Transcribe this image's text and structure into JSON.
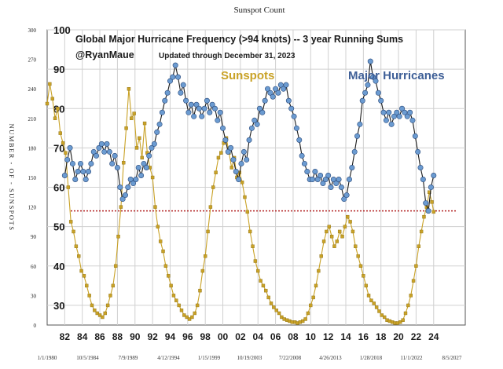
{
  "chart_data": {
    "type": "line",
    "title": "Sunspot Count",
    "inner_title": "Global Major Hurricane Frequency (>94 knots)  -- 3 year Running Sums",
    "author": "@RyanMaue",
    "update_note": "Updated through December 31, 2023",
    "left_axis_label": "NUMBER - OF - SUNSPOTS",
    "left_ticks": [
      "0",
      "30",
      "60",
      "90",
      "120",
      "150",
      "180",
      "210",
      "240",
      "270",
      "300"
    ],
    "left_range": [
      0,
      300
    ],
    "right_ticks": [
      "30",
      "40",
      "50",
      "60",
      "70",
      "80",
      "90",
      "100"
    ],
    "right_range": [
      25,
      100
    ],
    "bottom_date_ticks": [
      "1/1/1980",
      "10/5/1984",
      "7/9/1989",
      "4/12/1994",
      "1/15/1999",
      "10/19/2003",
      "7/22/2008",
      "4/26/2013",
      "1/28/2018",
      "11/1/2022",
      "8/5/2027"
    ],
    "year_ticks": [
      "82",
      "84",
      "86",
      "88",
      "90",
      "92",
      "94",
      "96",
      "98",
      "00",
      "02",
      "04",
      "06",
      "08",
      "10",
      "12",
      "14",
      "16",
      "18",
      "20",
      "22",
      "24"
    ],
    "x_range_years": [
      1980,
      2027.6
    ],
    "reference_line": 54,
    "grid": true,
    "series": [
      {
        "name": "Sunspots",
        "axis": "left",
        "color": "#C9A227",
        "points": [
          [
            1980.0,
            225
          ],
          [
            1980.3,
            245
          ],
          [
            1980.6,
            230
          ],
          [
            1980.9,
            210
          ],
          [
            1981.2,
            220
          ],
          [
            1981.5,
            195
          ],
          [
            1981.8,
            185
          ],
          [
            1982.1,
            175
          ],
          [
            1982.4,
            140
          ],
          [
            1982.7,
            105
          ],
          [
            1983.0,
            95
          ],
          [
            1983.3,
            80
          ],
          [
            1983.6,
            70
          ],
          [
            1983.9,
            55
          ],
          [
            1984.2,
            50
          ],
          [
            1984.5,
            40
          ],
          [
            1984.8,
            30
          ],
          [
            1985.1,
            20
          ],
          [
            1985.4,
            15
          ],
          [
            1985.7,
            12
          ],
          [
            1986.0,
            10
          ],
          [
            1986.3,
            8
          ],
          [
            1986.6,
            12
          ],
          [
            1986.9,
            20
          ],
          [
            1987.2,
            30
          ],
          [
            1987.5,
            40
          ],
          [
            1987.8,
            60
          ],
          [
            1988.1,
            90
          ],
          [
            1988.4,
            120
          ],
          [
            1988.7,
            165
          ],
          [
            1989.0,
            200
          ],
          [
            1989.3,
            240
          ],
          [
            1989.6,
            210
          ],
          [
            1989.9,
            215
          ],
          [
            1990.2,
            180
          ],
          [
            1990.5,
            190
          ],
          [
            1990.8,
            170
          ],
          [
            1991.1,
            205
          ],
          [
            1991.4,
            175
          ],
          [
            1991.7,
            160
          ],
          [
            1992.0,
            150
          ],
          [
            1992.3,
            120
          ],
          [
            1992.6,
            100
          ],
          [
            1992.9,
            85
          ],
          [
            1993.2,
            75
          ],
          [
            1993.5,
            60
          ],
          [
            1993.8,
            50
          ],
          [
            1994.1,
            40
          ],
          [
            1994.4,
            30
          ],
          [
            1994.7,
            25
          ],
          [
            1995.0,
            20
          ],
          [
            1995.3,
            15
          ],
          [
            1995.6,
            10
          ],
          [
            1995.9,
            8
          ],
          [
            1996.2,
            6
          ],
          [
            1996.5,
            8
          ],
          [
            1996.8,
            12
          ],
          [
            1997.1,
            20
          ],
          [
            1997.4,
            35
          ],
          [
            1997.7,
            55
          ],
          [
            1998.0,
            70
          ],
          [
            1998.3,
            95
          ],
          [
            1998.6,
            120
          ],
          [
            1998.9,
            140
          ],
          [
            1999.2,
            155
          ],
          [
            1999.5,
            170
          ],
          [
            1999.8,
            175
          ],
          [
            2000.1,
            185
          ],
          [
            2000.4,
            190
          ],
          [
            2000.7,
            175
          ],
          [
            2001.0,
            160
          ],
          [
            2001.3,
            170
          ],
          [
            2001.6,
            150
          ],
          [
            2001.9,
            155
          ],
          [
            2002.2,
            145
          ],
          [
            2002.5,
            130
          ],
          [
            2002.8,
            115
          ],
          [
            2003.1,
            95
          ],
          [
            2003.4,
            80
          ],
          [
            2003.7,
            65
          ],
          [
            2004.0,
            55
          ],
          [
            2004.3,
            45
          ],
          [
            2004.6,
            40
          ],
          [
            2004.9,
            35
          ],
          [
            2005.2,
            28
          ],
          [
            2005.5,
            22
          ],
          [
            2005.8,
            18
          ],
          [
            2006.1,
            15
          ],
          [
            2006.4,
            12
          ],
          [
            2006.7,
            8
          ],
          [
            2007.0,
            6
          ],
          [
            2007.3,
            5
          ],
          [
            2007.6,
            4
          ],
          [
            2007.9,
            3
          ],
          [
            2008.2,
            3
          ],
          [
            2008.5,
            2
          ],
          [
            2008.8,
            3
          ],
          [
            2009.1,
            4
          ],
          [
            2009.4,
            6
          ],
          [
            2009.7,
            12
          ],
          [
            2010.0,
            20
          ],
          [
            2010.3,
            28
          ],
          [
            2010.6,
            40
          ],
          [
            2010.9,
            55
          ],
          [
            2011.2,
            70
          ],
          [
            2011.5,
            85
          ],
          [
            2011.8,
            95
          ],
          [
            2012.1,
            100
          ],
          [
            2012.4,
            90
          ],
          [
            2012.7,
            80
          ],
          [
            2013.0,
            85
          ],
          [
            2013.3,
            95
          ],
          [
            2013.6,
            90
          ],
          [
            2013.9,
            100
          ],
          [
            2014.2,
            110
          ],
          [
            2014.5,
            105
          ],
          [
            2014.8,
            95
          ],
          [
            2015.1,
            80
          ],
          [
            2015.4,
            70
          ],
          [
            2015.7,
            60
          ],
          [
            2016.0,
            50
          ],
          [
            2016.3,
            40
          ],
          [
            2016.6,
            30
          ],
          [
            2016.9,
            25
          ],
          [
            2017.2,
            22
          ],
          [
            2017.5,
            18
          ],
          [
            2017.8,
            14
          ],
          [
            2018.1,
            10
          ],
          [
            2018.4,
            8
          ],
          [
            2018.7,
            5
          ],
          [
            2019.0,
            4
          ],
          [
            2019.3,
            3
          ],
          [
            2019.6,
            2
          ],
          [
            2019.9,
            2
          ],
          [
            2020.2,
            3
          ],
          [
            2020.5,
            5
          ],
          [
            2020.8,
            12
          ],
          [
            2021.1,
            20
          ],
          [
            2021.4,
            30
          ],
          [
            2021.7,
            45
          ],
          [
            2022.0,
            60
          ],
          [
            2022.3,
            80
          ],
          [
            2022.6,
            95
          ],
          [
            2022.9,
            110
          ],
          [
            2023.2,
            120
          ],
          [
            2023.5,
            135
          ],
          [
            2023.8,
            125
          ],
          [
            2024.0,
            115
          ]
        ]
      },
      {
        "name": "Major Hurricanes",
        "axis": "right",
        "color": "#6B9BD1",
        "points": [
          [
            1982.0,
            63
          ],
          [
            1982.3,
            67
          ],
          [
            1982.6,
            70
          ],
          [
            1982.9,
            66
          ],
          [
            1983.2,
            62
          ],
          [
            1983.5,
            64
          ],
          [
            1983.8,
            66
          ],
          [
            1984.1,
            64
          ],
          [
            1984.4,
            62
          ],
          [
            1984.7,
            64
          ],
          [
            1985.0,
            66
          ],
          [
            1985.3,
            69
          ],
          [
            1985.6,
            68
          ],
          [
            1985.9,
            70
          ],
          [
            1986.2,
            71
          ],
          [
            1986.5,
            69
          ],
          [
            1986.8,
            71
          ],
          [
            1987.1,
            69
          ],
          [
            1987.4,
            66
          ],
          [
            1987.7,
            68
          ],
          [
            1988.0,
            65
          ],
          [
            1988.3,
            60
          ],
          [
            1988.6,
            57
          ],
          [
            1988.9,
            58
          ],
          [
            1989.2,
            60
          ],
          [
            1989.5,
            62
          ],
          [
            1989.8,
            61
          ],
          [
            1990.1,
            62
          ],
          [
            1990.4,
            65
          ],
          [
            1990.7,
            63
          ],
          [
            1991.0,
            66
          ],
          [
            1991.3,
            65
          ],
          [
            1991.6,
            68
          ],
          [
            1991.9,
            70
          ],
          [
            1992.2,
            71
          ],
          [
            1992.5,
            74
          ],
          [
            1992.8,
            76
          ],
          [
            1993.1,
            79
          ],
          [
            1993.4,
            82
          ],
          [
            1993.7,
            84
          ],
          [
            1994.0,
            87
          ],
          [
            1994.3,
            88
          ],
          [
            1994.6,
            91
          ],
          [
            1994.9,
            88
          ],
          [
            1995.2,
            84
          ],
          [
            1995.5,
            86
          ],
          [
            1995.8,
            82
          ],
          [
            1996.1,
            79
          ],
          [
            1996.4,
            81
          ],
          [
            1996.7,
            78
          ],
          [
            1997.0,
            81
          ],
          [
            1997.3,
            80
          ],
          [
            1997.6,
            78
          ],
          [
            1997.9,
            80
          ],
          [
            1998.2,
            82
          ],
          [
            1998.5,
            79
          ],
          [
            1998.8,
            81
          ],
          [
            1999.1,
            80
          ],
          [
            1999.4,
            77
          ],
          [
            1999.7,
            79
          ],
          [
            2000.0,
            75
          ],
          [
            2000.3,
            72
          ],
          [
            2000.6,
            69
          ],
          [
            2000.9,
            70
          ],
          [
            2001.2,
            67
          ],
          [
            2001.5,
            64
          ],
          [
            2001.8,
            62
          ],
          [
            2002.1,
            66
          ],
          [
            2002.4,
            69
          ],
          [
            2002.7,
            67
          ],
          [
            2003.0,
            72
          ],
          [
            2003.3,
            75
          ],
          [
            2003.6,
            77
          ],
          [
            2003.9,
            76
          ],
          [
            2004.2,
            80
          ],
          [
            2004.5,
            79
          ],
          [
            2004.8,
            82
          ],
          [
            2005.1,
            85
          ],
          [
            2005.4,
            84
          ],
          [
            2005.7,
            83
          ],
          [
            2006.0,
            85
          ],
          [
            2006.3,
            84
          ],
          [
            2006.6,
            86
          ],
          [
            2006.9,
            85
          ],
          [
            2007.2,
            86
          ],
          [
            2007.5,
            82
          ],
          [
            2007.8,
            80
          ],
          [
            2008.1,
            78
          ],
          [
            2008.4,
            75
          ],
          [
            2008.7,
            72
          ],
          [
            2009.0,
            68
          ],
          [
            2009.3,
            66
          ],
          [
            2009.6,
            64
          ],
          [
            2009.9,
            62
          ],
          [
            2010.2,
            62
          ],
          [
            2010.5,
            64
          ],
          [
            2010.8,
            62
          ],
          [
            2011.1,
            63
          ],
          [
            2011.4,
            61
          ],
          [
            2011.7,
            62
          ],
          [
            2012.0,
            63
          ],
          [
            2012.3,
            60
          ],
          [
            2012.6,
            62
          ],
          [
            2012.9,
            61
          ],
          [
            2013.2,
            62
          ],
          [
            2013.5,
            60
          ],
          [
            2013.8,
            57
          ],
          [
            2014.1,
            58
          ],
          [
            2014.4,
            62
          ],
          [
            2014.7,
            65
          ],
          [
            2015.0,
            69
          ],
          [
            2015.3,
            73
          ],
          [
            2015.6,
            76
          ],
          [
            2015.9,
            82
          ],
          [
            2016.2,
            84
          ],
          [
            2016.5,
            86
          ],
          [
            2016.8,
            92
          ],
          [
            2017.1,
            88
          ],
          [
            2017.4,
            87
          ],
          [
            2017.7,
            84
          ],
          [
            2018.0,
            82
          ],
          [
            2018.3,
            79
          ],
          [
            2018.6,
            77
          ],
          [
            2018.9,
            79
          ],
          [
            2019.2,
            76
          ],
          [
            2019.5,
            78
          ],
          [
            2019.8,
            79
          ],
          [
            2020.1,
            78
          ],
          [
            2020.4,
            80
          ],
          [
            2020.7,
            79
          ],
          [
            2021.0,
            78
          ],
          [
            2021.3,
            79
          ],
          [
            2021.6,
            77
          ],
          [
            2021.9,
            73
          ],
          [
            2022.2,
            69
          ],
          [
            2022.5,
            65
          ],
          [
            2022.8,
            62
          ],
          [
            2023.1,
            56
          ],
          [
            2023.4,
            54
          ],
          [
            2023.7,
            60
          ],
          [
            2024.0,
            63
          ]
        ]
      }
    ]
  }
}
